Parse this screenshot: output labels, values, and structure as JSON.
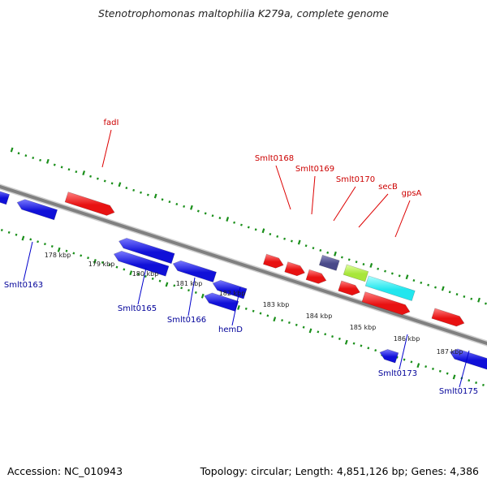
{
  "title": "Stenotrophomonas maltophilia K279a, complete genome",
  "footer": {
    "accession": "Accession: NC_010943",
    "topology": "Topology: circular; Length: 4,851,126 bp; Genes: 4,386"
  },
  "colors": {
    "forward_gene": "#ee1111",
    "reverse_gene": "#1111dd",
    "backbone": "#808080",
    "tick": "#1a8f1a",
    "forward_label": "#cc0000",
    "reverse_label": "#000099",
    "secB_gene": "#a8e63a",
    "gpsA_gene": "#22e6ee",
    "Smlt0170_gene": "#4a4a8a"
  },
  "scale_labels": [
    "178 kbp",
    "179 kbp",
    "180 kbp",
    "181 kbp",
    "182 kbp",
    "183 kbp",
    "184 kbp",
    "185 kbp",
    "186 kbp",
    "187 kbp"
  ],
  "forward_gene_labels": [
    "fadI",
    "Smlt0168",
    "Smlt0169",
    "Smlt0170",
    "secB",
    "gpsA"
  ],
  "reverse_gene_labels": [
    "Smlt0163",
    "Smlt0165",
    "Smlt0166",
    "hemD",
    "Smlt0173",
    "Smlt0175"
  ]
}
